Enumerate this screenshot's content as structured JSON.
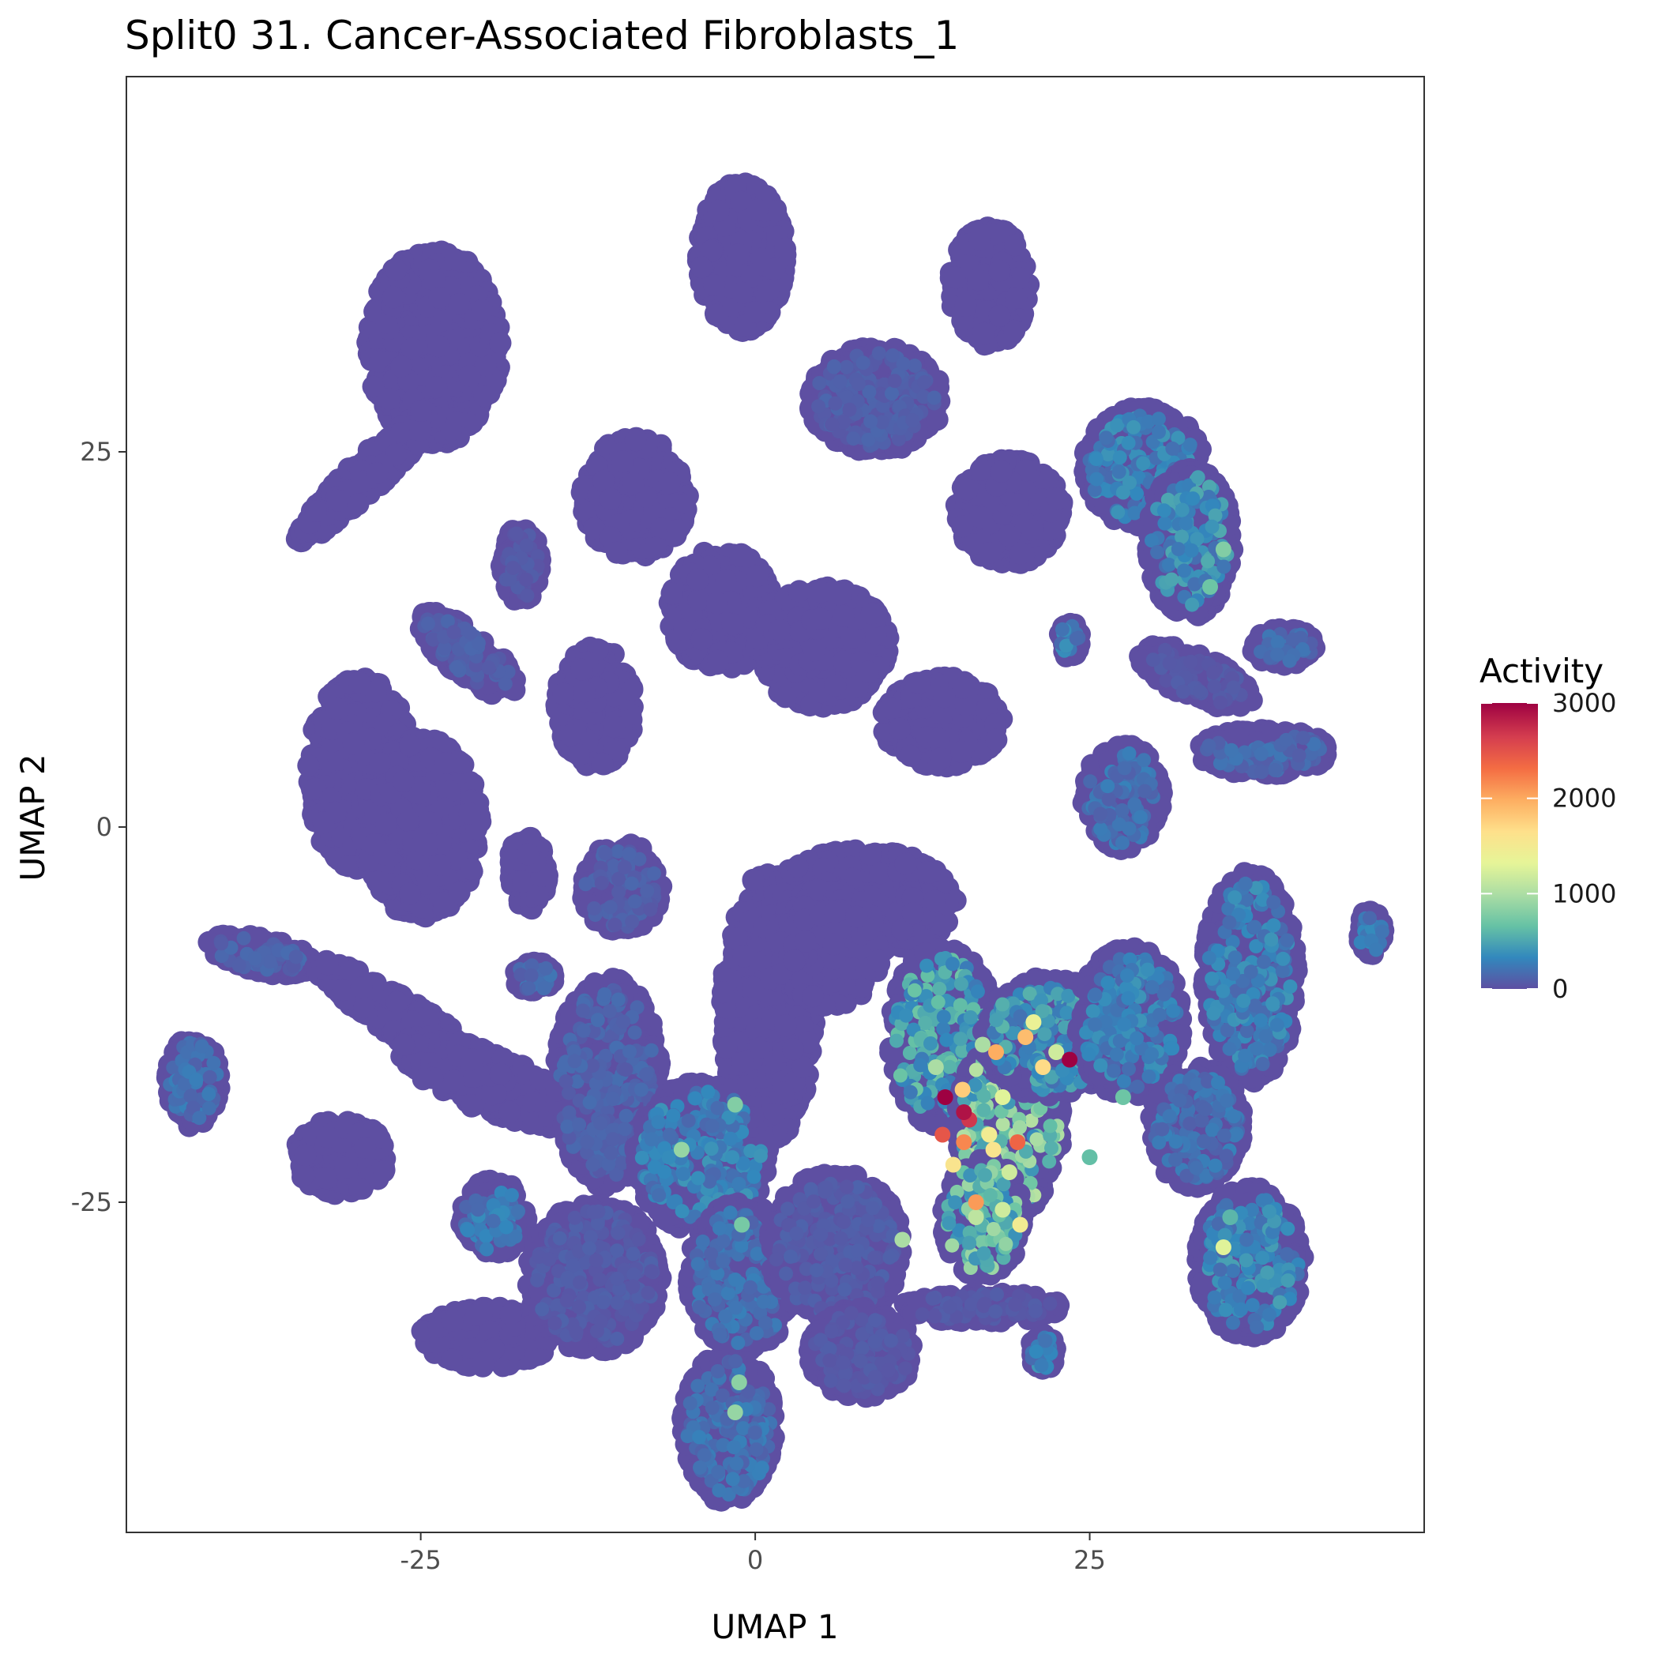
{
  "chart_data": {
    "type": "scatter",
    "title": "Split0 31. Cancer-Associated Fibroblasts_1",
    "xlabel": "UMAP 1",
    "ylabel": "UMAP 2",
    "xlim": [
      -47,
      50
    ],
    "ylim": [
      -47,
      50
    ],
    "x_ticks": [
      -25,
      0,
      25
    ],
    "y_ticks": [
      25,
      0,
      -25
    ],
    "x_tick_labels": [
      "-25",
      "0",
      "25"
    ],
    "y_tick_labels": [
      "25",
      "0",
      "-25"
    ],
    "grid": false,
    "legend": {
      "title": "Activity",
      "position": "right",
      "type": "colorbar",
      "range": [
        0,
        3000
      ],
      "ticks": [
        3000,
        2000,
        1000,
        0
      ],
      "tick_labels": [
        "3000",
        "2000",
        "1000",
        "0"
      ],
      "colors": [
        "#5E4FA2",
        "#3288BD",
        "#66C2A5",
        "#ABDDA4",
        "#E6F598",
        "#FEE08B",
        "#FDAE61",
        "#F46D43",
        "#D53E4F",
        "#9E0142"
      ]
    },
    "base_color": "#5E4FA2",
    "clusters": [
      {
        "cx": -24,
        "cy": 32,
        "rx": 5,
        "ry": 6.5,
        "rot": 0,
        "activity": 40
      },
      {
        "cx": -29,
        "cy": 23.5,
        "rx": 7,
        "ry": 1.2,
        "rot": 40,
        "activity": 30
      },
      {
        "cx": -1,
        "cy": 38,
        "rx": 3.3,
        "ry": 5,
        "rot": 0,
        "activity": 30
      },
      {
        "cx": 17.5,
        "cy": 36,
        "rx": 3,
        "ry": 4,
        "rot": 0,
        "activity": 40
      },
      {
        "cx": 9,
        "cy": 28.5,
        "rx": 5,
        "ry": 3.5,
        "rot": 0,
        "activity": 120
      },
      {
        "cx": 29,
        "cy": 24,
        "rx": 4.5,
        "ry": 4,
        "rot": 0,
        "activity": 350
      },
      {
        "cx": 32.5,
        "cy": 19,
        "rx": 3.2,
        "ry": 5,
        "rot": 0,
        "activity": 450
      },
      {
        "cx": -9,
        "cy": 22,
        "rx": 4,
        "ry": 4,
        "rot": 0,
        "activity": 60
      },
      {
        "cx": 19,
        "cy": 21,
        "rx": 4,
        "ry": 3.5,
        "rot": 0,
        "activity": 40
      },
      {
        "cx": -17.5,
        "cy": 17.5,
        "rx": 1.5,
        "ry": 2.5,
        "rot": 0,
        "activity": 80
      },
      {
        "cx": -2.5,
        "cy": 14.5,
        "rx": 4,
        "ry": 4,
        "rot": 0,
        "activity": 60
      },
      {
        "cx": -21.5,
        "cy": 11.5,
        "rx": 4.5,
        "ry": 1.5,
        "rot": -35,
        "activity": 120
      },
      {
        "cx": -29.5,
        "cy": 3.5,
        "rx": 4,
        "ry": 6.5,
        "rot": 0,
        "activity": 30
      },
      {
        "cx": -25,
        "cy": 0,
        "rx": 4.5,
        "ry": 6,
        "rot": 0,
        "activity": 30
      },
      {
        "cx": -12,
        "cy": 8,
        "rx": 3,
        "ry": 4,
        "rot": 0,
        "activity": 60
      },
      {
        "cx": 5,
        "cy": 12,
        "rx": 5,
        "ry": 4,
        "rot": 0,
        "activity": 60
      },
      {
        "cx": 14,
        "cy": 7,
        "rx": 4.5,
        "ry": 3,
        "rot": 0,
        "activity": 60
      },
      {
        "cx": 33,
        "cy": 10,
        "rx": 4.5,
        "ry": 1.5,
        "rot": -20,
        "activity": 80
      },
      {
        "cx": 38,
        "cy": 5,
        "rx": 5,
        "ry": 1.5,
        "rot": 0,
        "activity": 200
      },
      {
        "cx": 39.5,
        "cy": 12,
        "rx": 2.5,
        "ry": 1.2,
        "rot": 0,
        "activity": 200
      },
      {
        "cx": 27.5,
        "cy": 2,
        "rx": 3,
        "ry": 3.5,
        "rot": 0,
        "activity": 250
      },
      {
        "cx": 23.5,
        "cy": 12.5,
        "rx": 0.8,
        "ry": 1.2,
        "rot": 0,
        "activity": 350
      },
      {
        "cx": -17,
        "cy": -3,
        "rx": 1.5,
        "ry": 2.5,
        "rot": 0,
        "activity": 40
      },
      {
        "cx": -10,
        "cy": -4,
        "rx": 3,
        "ry": 3,
        "rot": 0,
        "activity": 120
      },
      {
        "cx": 1,
        "cy": -12,
        "rx": 3.5,
        "ry": 9,
        "rot": 0,
        "activity": 30
      },
      {
        "cx": 8,
        "cy": -5,
        "rx": 7,
        "ry": 3.5,
        "rot": 0,
        "activity": 50
      },
      {
        "cx": 5.5,
        "cy": -8,
        "rx": 4,
        "ry": 4,
        "rot": 0,
        "activity": 40
      },
      {
        "cx": -37,
        "cy": -8.5,
        "rx": 4,
        "ry": 1.2,
        "rot": -10,
        "activity": 150
      },
      {
        "cx": -42,
        "cy": -17,
        "rx": 2,
        "ry": 3,
        "rot": 0,
        "activity": 250
      },
      {
        "cx": -26,
        "cy": -13,
        "rx": 8,
        "ry": 1.4,
        "rot": -30,
        "activity": 60
      },
      {
        "cx": -20,
        "cy": -17,
        "rx": 7,
        "ry": 2,
        "rot": -20,
        "activity": 60
      },
      {
        "cx": -31,
        "cy": -22,
        "rx": 3.5,
        "ry": 2.5,
        "rot": 0,
        "activity": 30
      },
      {
        "cx": -19.5,
        "cy": -26,
        "rx": 2.5,
        "ry": 2.5,
        "rot": 0,
        "activity": 300
      },
      {
        "cx": -20,
        "cy": -34,
        "rx": 5,
        "ry": 2,
        "rot": 0,
        "activity": 50
      },
      {
        "cx": -12,
        "cy": -30,
        "rx": 5,
        "ry": 5,
        "rot": 0,
        "activity": 100
      },
      {
        "cx": -11,
        "cy": -17,
        "rx": 4,
        "ry": 7,
        "rot": 0,
        "activity": 150
      },
      {
        "cx": -4,
        "cy": -22,
        "rx": 5,
        "ry": 5,
        "rot": 0,
        "activity": 350
      },
      {
        "cx": -1,
        "cy": -30,
        "rx": 4,
        "ry": 5,
        "rot": 0,
        "activity": 250
      },
      {
        "cx": -2,
        "cy": -40,
        "rx": 3.5,
        "ry": 5,
        "rot": 0,
        "activity": 250
      },
      {
        "cx": 6,
        "cy": -28,
        "rx": 5,
        "ry": 5,
        "rot": 0,
        "activity": 100
      },
      {
        "cx": 8,
        "cy": -35,
        "rx": 4,
        "ry": 3,
        "rot": 0,
        "activity": 80
      },
      {
        "cx": 14,
        "cy": -14,
        "rx": 4,
        "ry": 6,
        "rot": 0,
        "activity": 600
      },
      {
        "cx": 19,
        "cy": -20,
        "rx": 4,
        "ry": 6,
        "rot": 0,
        "activity": 900
      },
      {
        "cx": 17,
        "cy": -26,
        "rx": 3,
        "ry": 4,
        "rot": 0,
        "activity": 800
      },
      {
        "cx": 22,
        "cy": -14,
        "rx": 5,
        "ry": 4,
        "rot": 0,
        "activity": 500
      },
      {
        "cx": 28,
        "cy": -13,
        "rx": 4,
        "ry": 5,
        "rot": 0,
        "activity": 350
      },
      {
        "cx": 37,
        "cy": -10,
        "rx": 3.5,
        "ry": 7,
        "rot": 0,
        "activity": 350
      },
      {
        "cx": 33,
        "cy": -20,
        "rx": 3.5,
        "ry": 4,
        "rot": 0,
        "activity": 250
      },
      {
        "cx": 37,
        "cy": -29,
        "rx": 4,
        "ry": 5,
        "rot": 0,
        "activity": 400
      },
      {
        "cx": 21.5,
        "cy": -35,
        "rx": 1,
        "ry": 1.2,
        "rot": 0,
        "activity": 350
      },
      {
        "cx": 46,
        "cy": -7,
        "rx": 1,
        "ry": 1.5,
        "rot": 0,
        "activity": 300
      },
      {
        "cx": 17,
        "cy": -32,
        "rx": 6,
        "ry": 1,
        "rot": 0,
        "activity": 80
      },
      {
        "cx": -16.5,
        "cy": -10,
        "rx": 1.5,
        "ry": 1,
        "rot": 0,
        "activity": 200
      }
    ],
    "highlight_points": [
      {
        "x": 14.2,
        "y": -18.0,
        "v": 3000
      },
      {
        "x": 15.6,
        "y": -19.0,
        "v": 2900
      },
      {
        "x": 16.0,
        "y": -19.5,
        "v": 2700
      },
      {
        "x": 23.5,
        "y": -15.5,
        "v": 3000
      },
      {
        "x": 14.0,
        "y": -20.5,
        "v": 2500
      },
      {
        "x": 19.6,
        "y": -21.0,
        "v": 2400
      },
      {
        "x": 15.6,
        "y": -21.0,
        "v": 2200
      },
      {
        "x": 18.0,
        "y": -15.0,
        "v": 2000
      },
      {
        "x": 20.2,
        "y": -14.0,
        "v": 1900
      },
      {
        "x": 16.5,
        "y": -25.0,
        "v": 2100
      },
      {
        "x": 15.5,
        "y": -17.5,
        "v": 1800
      },
      {
        "x": 14.8,
        "y": -22.5,
        "v": 1600
      },
      {
        "x": 17.5,
        "y": -20.5,
        "v": 1500
      },
      {
        "x": 18.5,
        "y": -18.0,
        "v": 1300
      },
      {
        "x": 20.8,
        "y": -13.0,
        "v": 1400
      },
      {
        "x": 21.5,
        "y": -16.0,
        "v": 1700
      },
      {
        "x": 19.8,
        "y": -26.5,
        "v": 1500
      },
      {
        "x": 18.5,
        "y": -25.5,
        "v": 1200
      },
      {
        "x": 35.0,
        "y": -28.0,
        "v": 1300
      },
      {
        "x": 16.5,
        "y": -26.0,
        "v": 1100
      },
      {
        "x": 13.5,
        "y": -16.0,
        "v": 1000
      },
      {
        "x": 17.0,
        "y": -14.5,
        "v": 1000
      },
      {
        "x": 11.0,
        "y": -27.5,
        "v": 1000
      },
      {
        "x": 19.0,
        "y": -23.0,
        "v": 1200
      },
      {
        "x": 17.8,
        "y": -21.5,
        "v": 1600
      },
      {
        "x": 22.5,
        "y": -15.0,
        "v": 1200
      },
      {
        "x": -5.5,
        "y": -21.5,
        "v": 900
      },
      {
        "x": -1.5,
        "y": -18.5,
        "v": 800
      },
      {
        "x": -1.5,
        "y": -39.0,
        "v": 900
      },
      {
        "x": -1.2,
        "y": -37.0,
        "v": 850
      },
      {
        "x": 35.0,
        "y": 18.5,
        "v": 800
      },
      {
        "x": 34.0,
        "y": 16.0,
        "v": 700
      },
      {
        "x": -1.0,
        "y": -26.5,
        "v": 750
      },
      {
        "x": 27.5,
        "y": -18.0,
        "v": 700
      },
      {
        "x": 25.0,
        "y": -22.0,
        "v": 650
      },
      {
        "x": 35.5,
        "y": -26.0,
        "v": 600
      }
    ]
  }
}
